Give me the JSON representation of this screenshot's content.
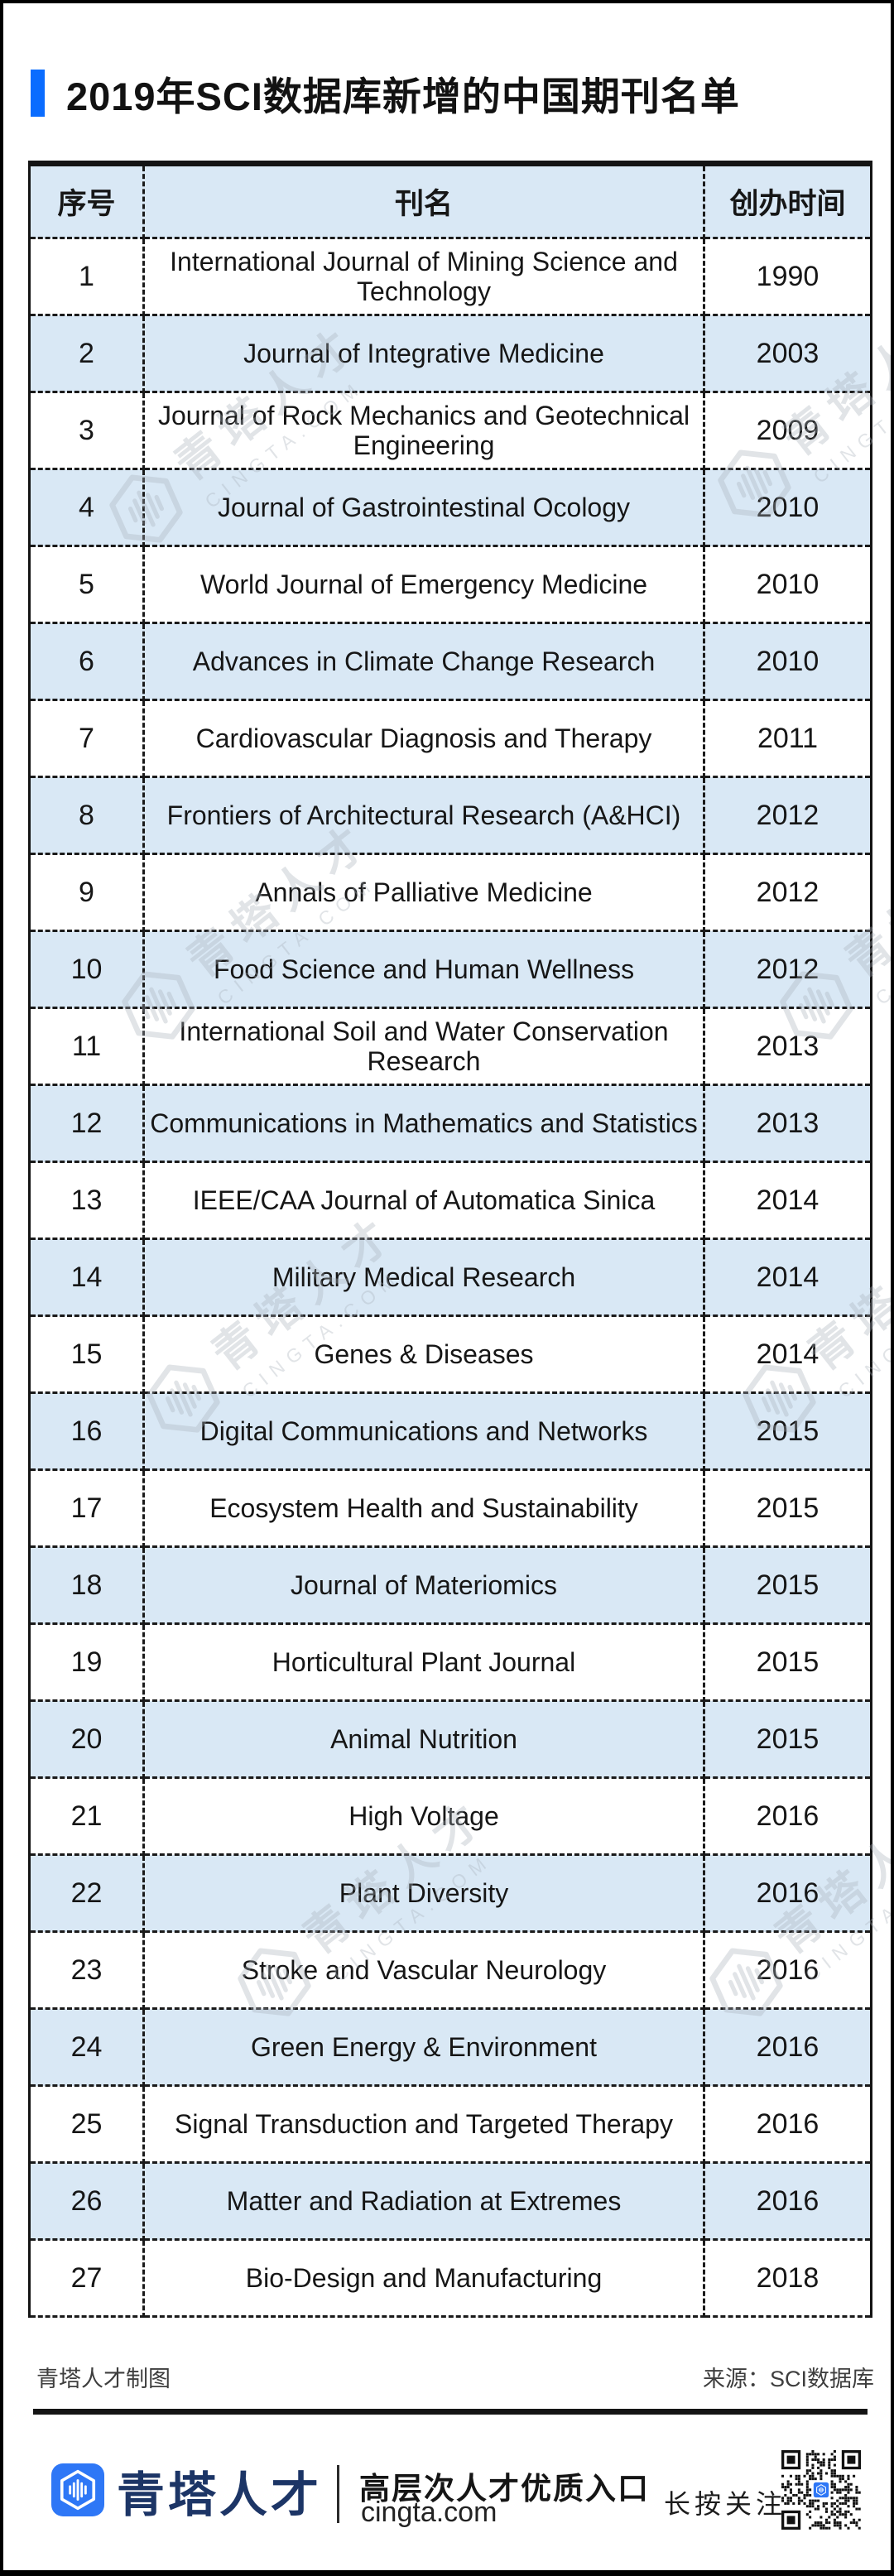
{
  "title": "2019年SCI数据库新增的中国期刊名单",
  "chart_data": {
    "type": "table",
    "title": "2019年SCI数据库新增的中国期刊名单",
    "columns": [
      "序号",
      "刊名",
      "创办时间"
    ],
    "rows": [
      [
        "1",
        "International Journal of Mining Science and Technology",
        "1990"
      ],
      [
        "2",
        "Journal of Integrative Medicine",
        "2003"
      ],
      [
        "3",
        "Journal of Rock Mechanics and Geotechnical Engineering",
        "2009"
      ],
      [
        "4",
        "Journal of Gastrointestinal Ocology",
        "2010"
      ],
      [
        "5",
        "World Journal of Emergency Medicine",
        "2010"
      ],
      [
        "6",
        "Advances in Climate Change Research",
        "2010"
      ],
      [
        "7",
        "Cardiovascular Diagnosis and Therapy",
        "2011"
      ],
      [
        "8",
        "Frontiers of Architectural Research (A&HCI)",
        "2012"
      ],
      [
        "9",
        "Annals of Palliative Medicine",
        "2012"
      ],
      [
        "10",
        "Food Science and Human Wellness",
        "2012"
      ],
      [
        "11",
        "International Soil and Water Conservation Research",
        "2013"
      ],
      [
        "12",
        "Communications in Mathematics and Statistics",
        "2013"
      ],
      [
        "13",
        "IEEE/CAA Journal of Automatica Sinica",
        "2014"
      ],
      [
        "14",
        "Military Medical Research",
        "2014"
      ],
      [
        "15",
        "Genes & Diseases",
        "2014"
      ],
      [
        "16",
        "Digital Communications and Networks",
        "2015"
      ],
      [
        "17",
        "Ecosystem Health and Sustainability",
        "2015"
      ],
      [
        "18",
        "Journal of Materiomics",
        "2015"
      ],
      [
        "19",
        "Horticultural Plant Journal",
        "2015"
      ],
      [
        "20",
        "Animal Nutrition",
        "2015"
      ],
      [
        "21",
        "High Voltage",
        "2016"
      ],
      [
        "22",
        "Plant Diversity",
        "2016"
      ],
      [
        "23",
        "Stroke and Vascular Neurology",
        "2016"
      ],
      [
        "24",
        "Green Energy & Environment",
        "2016"
      ],
      [
        "25",
        "Signal Transduction and Targeted Therapy",
        "2016"
      ],
      [
        "26",
        "Matter and Radiation at Extremes",
        "2016"
      ],
      [
        "27",
        "Bio-Design and Manufacturing",
        "2018"
      ]
    ]
  },
  "notes": {
    "credit": "青塔人才制图",
    "source": "来源：SCI数据库"
  },
  "brand": {
    "name": "青塔人才",
    "tagline": "高层次人才优质入口",
    "site": "cingta.com",
    "follow": "长按关注",
    "logo_icon": "soundwave-hexagon-icon",
    "qr_icon": "qr-code"
  },
  "watermark": {
    "text": "青塔人才",
    "subtext": "CINGTA.COM"
  },
  "colors": {
    "accent_blue": "#0a6cff",
    "row_blue": "#d9e8f5",
    "brand_blue": "#2e77f6",
    "brand_navy": "#1c3566",
    "text_black": "#141414",
    "note_gray": "#3e3e3e",
    "watermark_gray": "#a9b1bb"
  }
}
